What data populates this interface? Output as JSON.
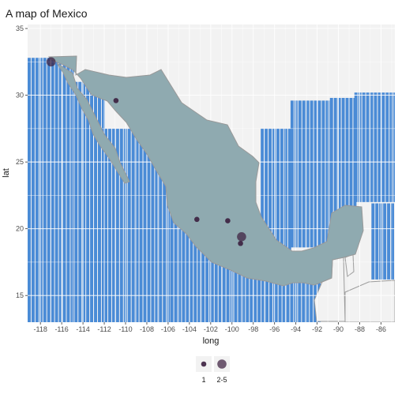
{
  "chart_data": {
    "type": "map",
    "title": "A map of Mexico",
    "xlabel": "long",
    "ylabel": "lat",
    "xlim": [
      -119.2,
      -84.7
    ],
    "ylim": [
      13,
      35.3
    ],
    "x_ticks": [
      -118,
      -116,
      -114,
      -112,
      -110,
      -108,
      -106,
      -104,
      -102,
      -100,
      -98,
      -96,
      -94,
      -92,
      -90,
      -88,
      -86
    ],
    "y_ticks": [
      15,
      20,
      25,
      30,
      35
    ],
    "colors": {
      "panel": "#f2f2f2",
      "water": "#4a8bd6",
      "mexico": "#8faab0",
      "mexico_border": "#999999",
      "neighbor": "#f2f2f2",
      "neighbor_border": "#9c9c9c",
      "gridline": "#ffffff",
      "point": "#3b1f3f"
    },
    "points": [
      {
        "long": -117.0,
        "lat": 32.5,
        "count": "2-5"
      },
      {
        "long": -110.9,
        "lat": 29.6,
        "count": "1"
      },
      {
        "long": -103.3,
        "lat": 20.7,
        "count": "1"
      },
      {
        "long": -100.4,
        "lat": 20.6,
        "count": "1"
      },
      {
        "long": -99.1,
        "lat": 19.4,
        "count": "2-5"
      },
      {
        "long": -99.2,
        "lat": 18.9,
        "count": "1"
      }
    ],
    "legend": {
      "position": "bottom",
      "items": [
        {
          "label": "1",
          "size": "small"
        },
        {
          "label": "2-5",
          "size": "large"
        }
      ]
    }
  }
}
